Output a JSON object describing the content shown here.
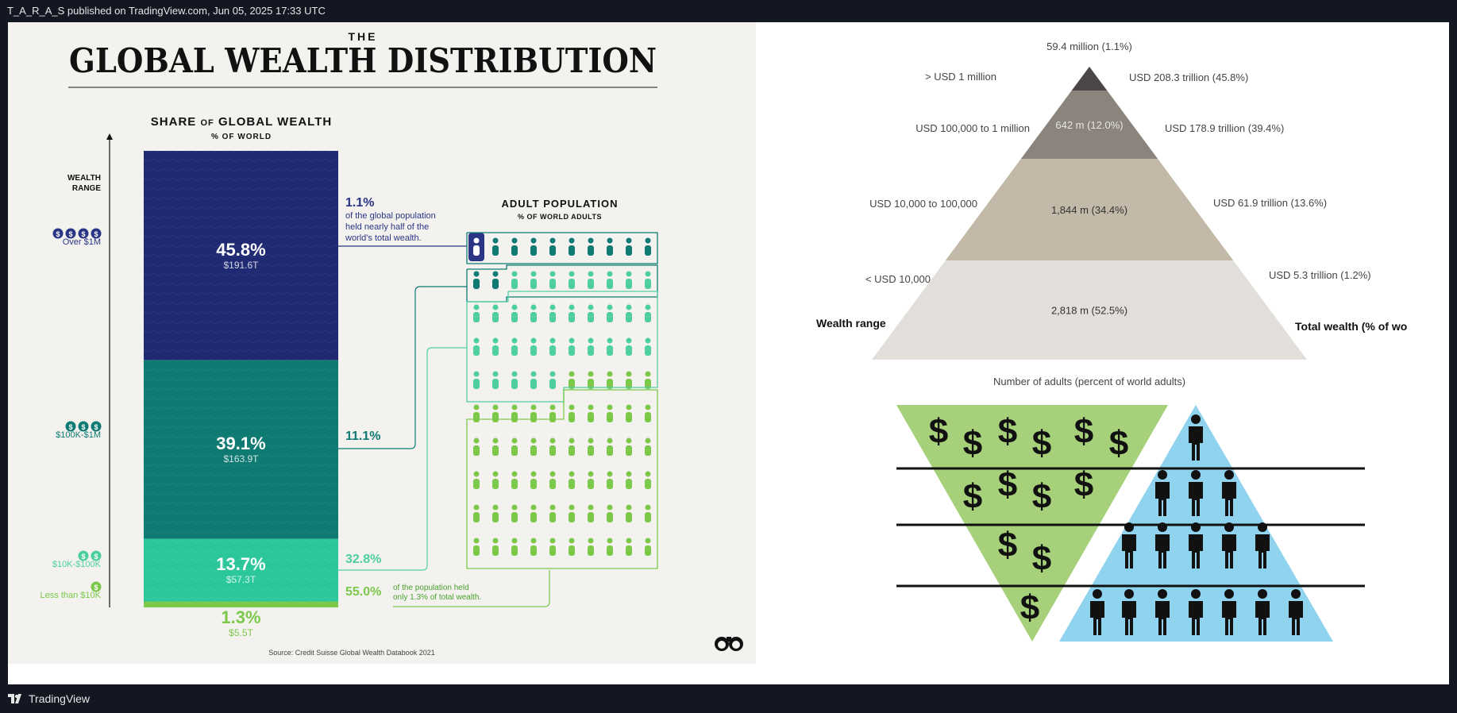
{
  "header": {
    "publish_info": "T_A_R_A_S published on TradingView.com, Jun 05, 2025 17:33 UTC"
  },
  "footer": {
    "brand": "TradingView"
  },
  "left": {
    "title_small": "THE",
    "title_big": "GLOBAL WEALTH DISTRIBUTION",
    "share_title_a": "SHARE",
    "share_title_of": "OF",
    "share_title_b": "GLOBAL WEALTH",
    "share_sub": "% OF WORLD",
    "wealth_range_1": "WEALTH",
    "wealth_range_2": "RANGE",
    "adult_title": "ADULT POPULATION",
    "adult_sub": "% OF WORLD ADULTS",
    "source": "Source: Credit Suisse Global Wealth Databook 2021",
    "note_top_pct": "1.1%",
    "note_top_1": "of the global population",
    "note_top_2": "held nearly half of the",
    "note_top_3": "world's total wealth.",
    "note_bottom_1": "of the population held",
    "note_bottom_2": "only 1.3% of total wealth.",
    "ranges": [
      {
        "label": "Over $1M",
        "coins": "$$$$"
      },
      {
        "label": "$100K-$1M",
        "coins": "$$$"
      },
      {
        "label": "$10K-$100K",
        "coins": "$$"
      },
      {
        "label": "Less than $10K",
        "coins": "$"
      }
    ]
  },
  "chart_data": [
    {
      "type": "bar",
      "title": "SHARE OF GLOBAL WEALTH",
      "subtitle": "% OF WORLD",
      "categories": [
        "Over $1M",
        "$100K-$1M",
        "$10K-$100K",
        "Less than $10K"
      ],
      "values": [
        45.8,
        39.1,
        13.7,
        1.3
      ],
      "value_labels": [
        "45.8%",
        "39.1%",
        "13.7%",
        "1.3%"
      ],
      "amount_labels": [
        "$191.6T",
        "$163.9T",
        "$57.3T",
        "$5.5T"
      ],
      "colors": [
        "#1f2a73",
        "#0e7a72",
        "#2bc79a",
        "#7cc84a"
      ],
      "stacked": true
    },
    {
      "type": "table",
      "title": "ADULT POPULATION",
      "subtitle": "% OF WORLD ADULTS",
      "categories": [
        "Over $1M",
        "$100K-$1M",
        "$10K-$100K",
        "Less than $10K"
      ],
      "values": [
        1.1,
        11.1,
        32.8,
        55.0
      ],
      "value_labels": [
        "1.1%",
        "11.1%",
        "32.8%",
        "55.0%"
      ],
      "colors": [
        "#2a3586",
        "#0e7a72",
        "#4fcfa0",
        "#7cc84a"
      ]
    },
    {
      "type": "table",
      "wealth_range_label": "Wealth range",
      "total_wealth_label": "Total wealth (% of wo",
      "top_label": "59.4 million (1.1%)",
      "rows": [
        {
          "range": ">  USD 1 million",
          "adults": "",
          "total": "USD 208.3 trillion (45.8%)",
          "color": "#4a4746"
        },
        {
          "range": "USD 100,000  to 1 million",
          "adults": "642 m (12.0%)",
          "total": "USD 178.9 trillion (39.4%)",
          "color": "#8a847c"
        },
        {
          "range": "USD 10,000  to 100,000",
          "adults": "1,844 m (34.4%)",
          "total": "USD 61.9 trillion (13.6%)",
          "color": "#c2b9a8"
        },
        {
          "range": "< USD 10,000",
          "adults": "2,818 m (52.5%)",
          "total": "USD 5.3 trillion (1.2%)",
          "color": "#e2dfda"
        }
      ],
      "footnote": "Number of adults (percent of world adults)"
    }
  ],
  "illustration": {
    "green_color": "#a6d17a",
    "blue_color": "#8fd3ef",
    "money_rows": [
      6,
      4,
      2,
      1
    ],
    "people_rows": [
      1,
      3,
      5,
      7
    ]
  }
}
